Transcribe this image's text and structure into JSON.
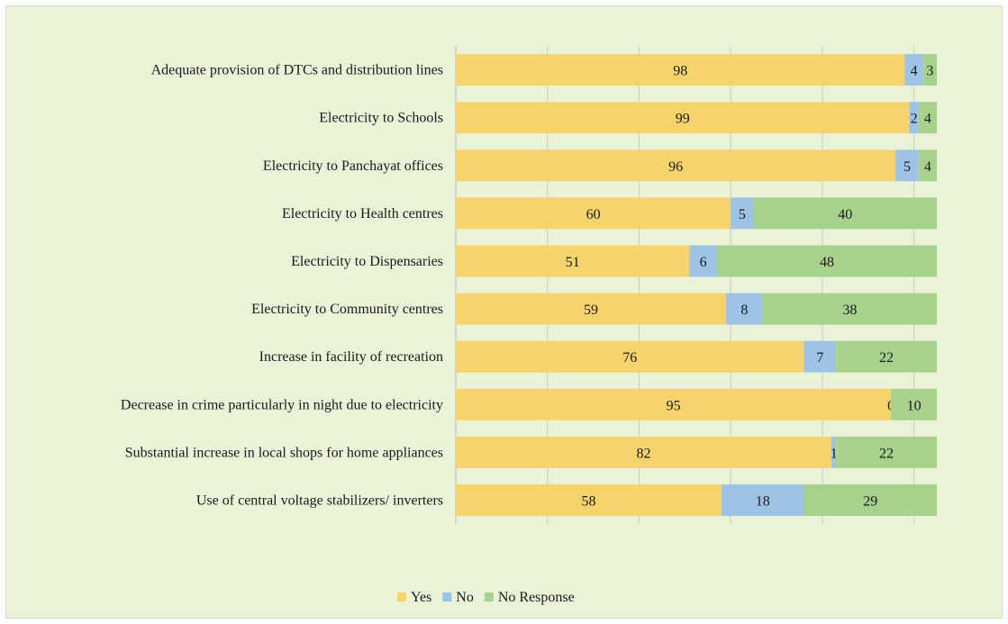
{
  "chart_data": {
    "type": "bar",
    "orientation": "horizontal",
    "stacked": true,
    "categories": [
      "Adequate provision of DTCs and distribution lines",
      "Electricity to Schools",
      "Electricity to Panchayat offices",
      "Electricity to Health centres",
      "Electricity to Dispensaries",
      "Electricity to Community centres",
      "Increase in facility of recreation",
      "Decrease in crime particularly in night due to electricity",
      "Substantial increase in local shops for home appliances",
      "Use of central voltage stabilizers/ inverters"
    ],
    "series": [
      {
        "name": "Yes",
        "color": "#f7d46b",
        "values": [
          98,
          99,
          96,
          60,
          51,
          59,
          76,
          95,
          82,
          58
        ]
      },
      {
        "name": "No",
        "color": "#9dc3e6",
        "values": [
          4,
          2,
          5,
          5,
          6,
          8,
          7,
          0,
          1,
          18
        ]
      },
      {
        "name": "No Response",
        "color": "#a9d18e",
        "values": [
          3,
          4,
          4,
          40,
          48,
          38,
          22,
          10,
          22,
          29
        ]
      }
    ],
    "xlim": [
      0,
      105
    ],
    "grid": true,
    "legend_position": "bottom"
  }
}
